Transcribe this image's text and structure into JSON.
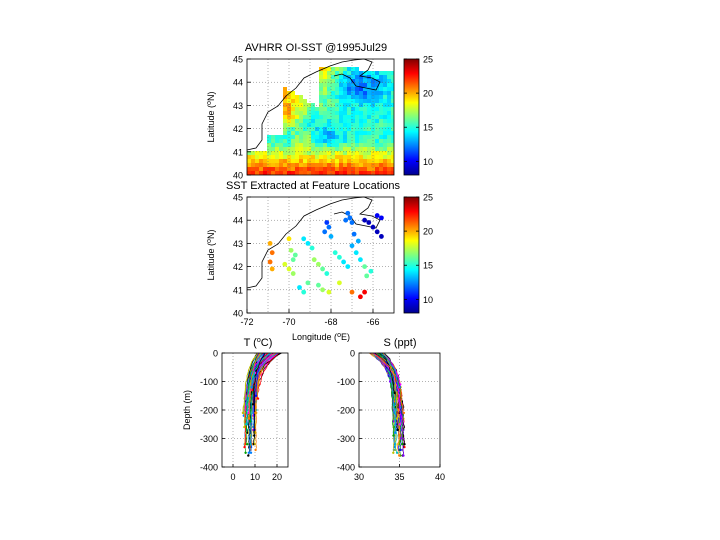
{
  "chart_data": [
    {
      "type": "heatmap",
      "title": "AVHRR OI-SST @1995Jul29",
      "ylabel": "Latitude (°N)",
      "xlim": [
        -72,
        -65
      ],
      "ylim": [
        40,
        45
      ],
      "yticks": [
        40,
        41,
        42,
        43,
        44,
        45
      ],
      "grid": true,
      "colorbar": {
        "min": 8,
        "max": 25,
        "ticks": [
          10,
          15,
          20,
          25
        ]
      }
    },
    {
      "type": "scatter",
      "title": "SST Extracted at Feature Locations",
      "xlabel": "Longitude (°E)",
      "ylabel": "Latitude (°N)",
      "xlim": [
        -72,
        -65
      ],
      "ylim": [
        40,
        45
      ],
      "xticks": [
        -72,
        -70,
        -68,
        -66
      ],
      "yticks": [
        40,
        41,
        42,
        43,
        44,
        45
      ],
      "grid": true,
      "colorbar": {
        "min": 8,
        "max": 25,
        "ticks": [
          10,
          15,
          20,
          25
        ]
      },
      "points": [
        [
          -67.2,
          44.3,
          12
        ],
        [
          -67.1,
          44.1,
          12
        ],
        [
          -67.0,
          43.9,
          12
        ],
        [
          -67.3,
          44.0,
          12
        ],
        [
          -66.2,
          43.9,
          9
        ],
        [
          -66.0,
          43.7,
          9
        ],
        [
          -65.8,
          43.5,
          9
        ],
        [
          -65.6,
          43.3,
          9
        ],
        [
          -66.4,
          44.0,
          9
        ],
        [
          -65.8,
          44.2,
          10
        ],
        [
          -65.6,
          44.1,
          10
        ],
        [
          -68.2,
          43.9,
          11
        ],
        [
          -68.1,
          43.7,
          12
        ],
        [
          -68.3,
          43.5,
          12
        ],
        [
          -68.0,
          43.3,
          13
        ],
        [
          -69.3,
          43.2,
          14
        ],
        [
          -69.1,
          43.0,
          14
        ],
        [
          -68.9,
          42.8,
          15
        ],
        [
          -70.0,
          43.2,
          19
        ],
        [
          -69.9,
          42.7,
          17
        ],
        [
          -69.7,
          42.5,
          16
        ],
        [
          -69.8,
          42.3,
          16
        ],
        [
          -70.9,
          43.0,
          20
        ],
        [
          -70.8,
          42.6,
          21
        ],
        [
          -70.9,
          42.2,
          21
        ],
        [
          -70.8,
          41.9,
          20
        ],
        [
          -70.2,
          42.1,
          18
        ],
        [
          -70.0,
          41.9,
          18
        ],
        [
          -69.8,
          41.7,
          17
        ],
        [
          -68.8,
          42.3,
          17
        ],
        [
          -68.6,
          42.1,
          17
        ],
        [
          -68.4,
          41.9,
          16
        ],
        [
          -68.2,
          41.7,
          15
        ],
        [
          -67.8,
          42.6,
          15
        ],
        [
          -67.6,
          42.4,
          15
        ],
        [
          -67.4,
          42.2,
          14
        ],
        [
          -67.2,
          42.0,
          14
        ],
        [
          -67.0,
          42.9,
          13
        ],
        [
          -66.8,
          42.6,
          14
        ],
        [
          -66.6,
          42.3,
          14
        ],
        [
          -66.4,
          42.0,
          16
        ],
        [
          -66.9,
          43.4,
          12
        ],
        [
          -66.7,
          43.1,
          13
        ],
        [
          -69.5,
          41.1,
          14
        ],
        [
          -69.3,
          40.9,
          15
        ],
        [
          -69.1,
          41.3,
          16
        ],
        [
          -68.6,
          41.2,
          16
        ],
        [
          -68.4,
          41.0,
          17
        ],
        [
          -68.1,
          40.9,
          18
        ],
        [
          -67.6,
          41.3,
          18
        ],
        [
          -67.0,
          40.9,
          21
        ],
        [
          -66.6,
          40.7,
          23
        ],
        [
          -66.4,
          40.9,
          23
        ],
        [
          -66.3,
          41.6,
          16
        ],
        [
          -66.1,
          41.8,
          15
        ]
      ]
    },
    {
      "type": "line",
      "title": "T (°C)",
      "ylabel": "Depth (m)",
      "xlim": [
        -5,
        25
      ],
      "ylim": [
        -400,
        0
      ],
      "xticks": [
        0,
        10,
        20
      ],
      "yticks": [
        0,
        -100,
        -200,
        -300,
        -400
      ],
      "grid": true,
      "profiles_note": "many CTD temperature profiles, surface ~12-22, deep ~5-10"
    },
    {
      "type": "line",
      "title": "S (ppt)",
      "xlim": [
        30,
        40
      ],
      "ylim": [
        -400,
        0
      ],
      "xticks": [
        30,
        35,
        40
      ],
      "yticks": [
        0,
        -100,
        -200,
        -300,
        -400
      ],
      "grid": true,
      "profiles_note": "many CTD salinity profiles, surface ~31-33, deep ~34.5-35.5"
    }
  ]
}
